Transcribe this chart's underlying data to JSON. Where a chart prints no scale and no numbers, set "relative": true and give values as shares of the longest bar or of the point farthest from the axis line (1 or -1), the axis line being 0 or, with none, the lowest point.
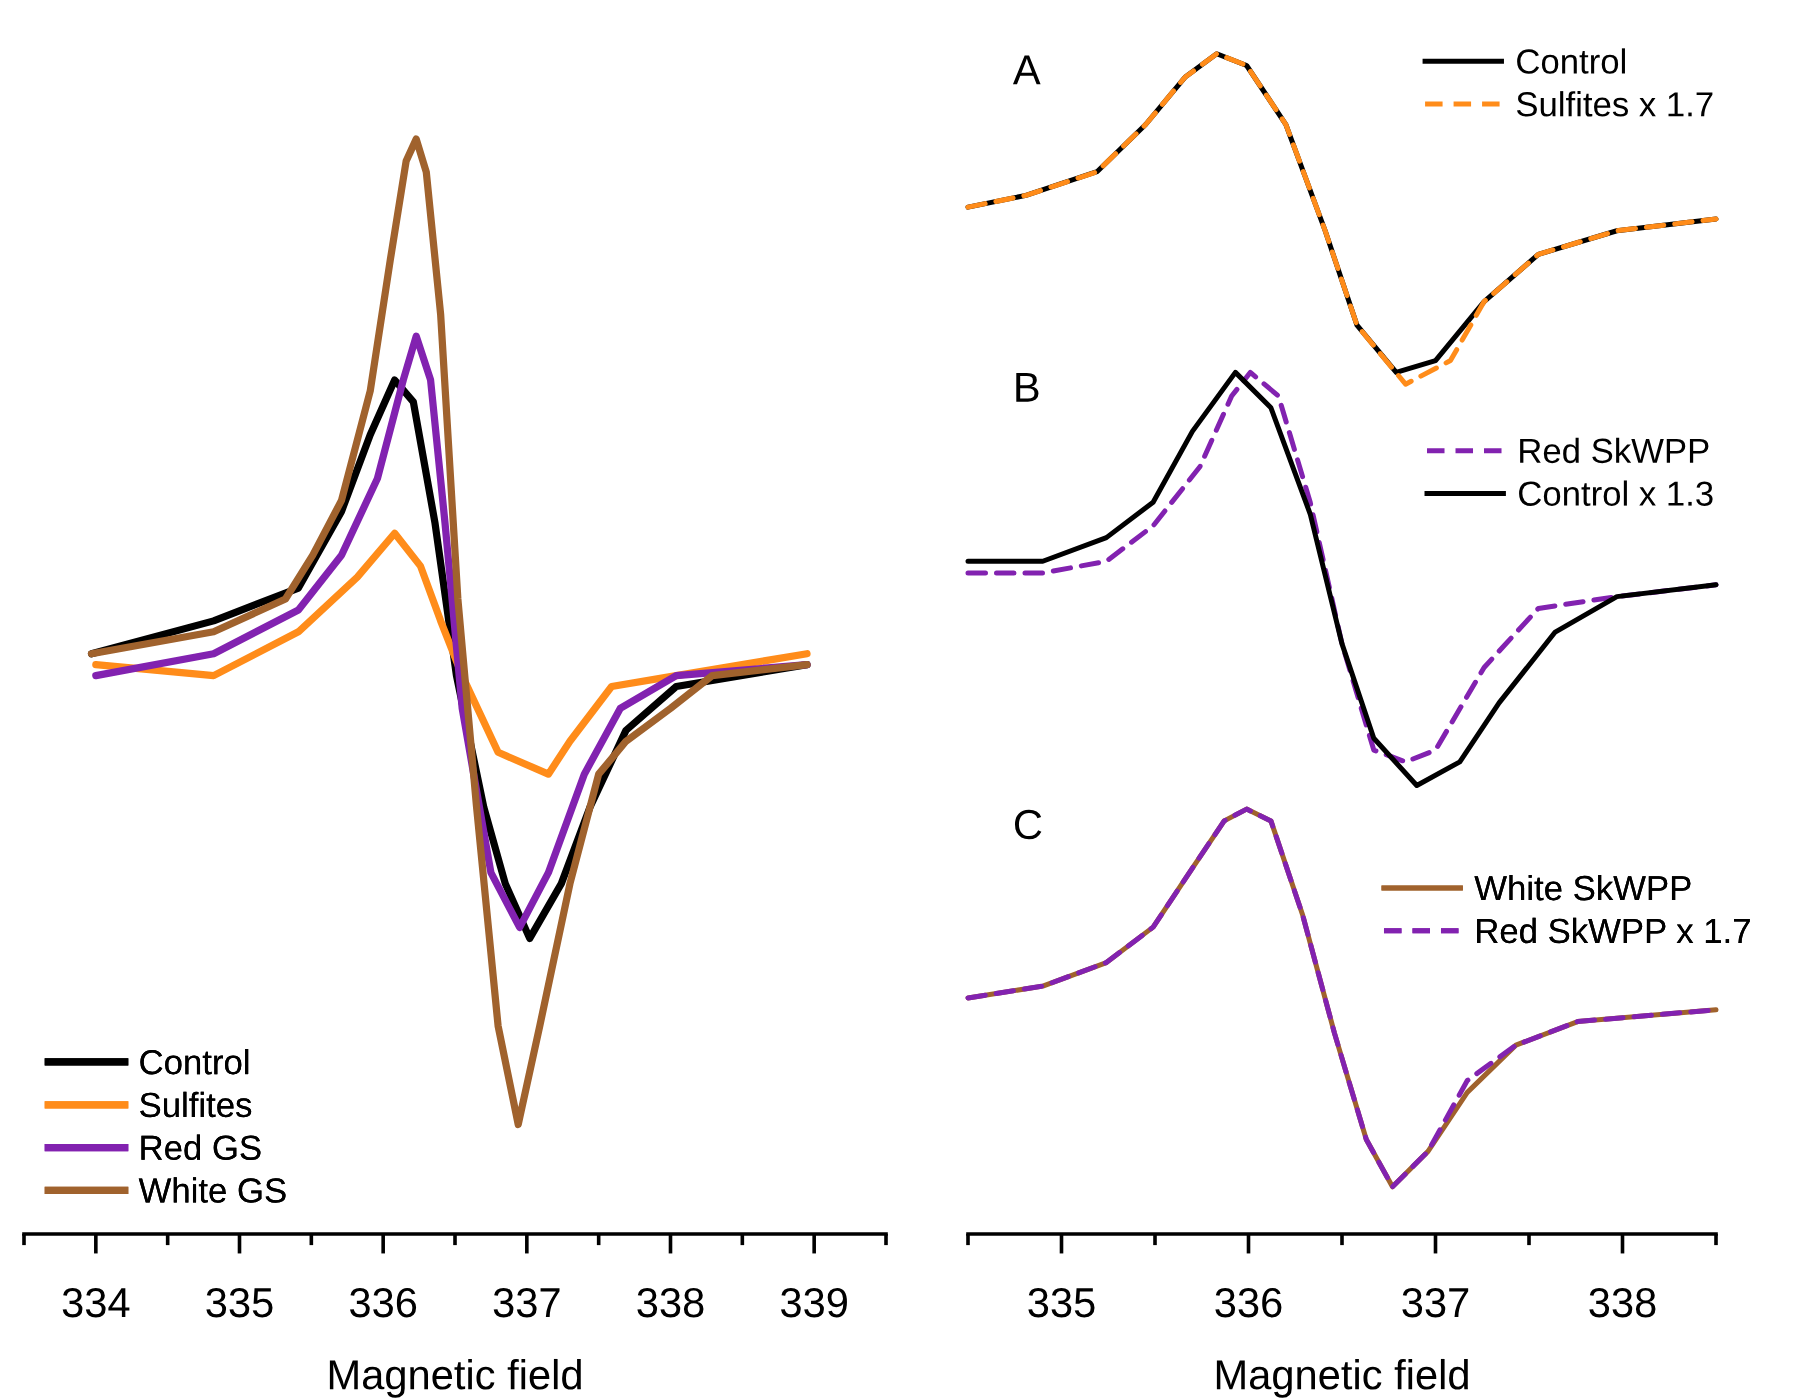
{
  "chart_data": [
    {
      "type": "line",
      "relative": true,
      "xlabel": "Magnetic field",
      "xlim": [
        333.5,
        339.5
      ],
      "xticks": [
        334,
        335,
        336,
        337,
        338,
        339
      ],
      "tick_labels": "x",
      "legend": "bottom left",
      "line_style": "solid",
      "series": [
        {
          "name": "Control",
          "color": "#000000",
          "x": [
            333.97,
            334.82,
            335.41,
            335.71,
            335.91,
            336.08,
            336.21,
            336.36,
            336.51,
            336.7,
            336.85,
            337.02,
            337.24,
            337.44,
            337.69,
            338.04,
            338.95
          ],
          "values": [
            0.53,
            0.56,
            0.59,
            0.66,
            0.73,
            0.78,
            0.76,
            0.65,
            0.51,
            0.39,
            0.32,
            0.27,
            0.32,
            0.39,
            0.46,
            0.5,
            0.52
          ]
        },
        {
          "name": "Sulfites",
          "color": "#ff8c1a",
          "x": [
            334.0,
            334.82,
            335.41,
            335.82,
            336.08,
            336.26,
            336.4,
            336.55,
            336.8,
            337.15,
            337.3,
            337.59,
            338.04,
            338.95
          ],
          "values": [
            0.52,
            0.51,
            0.55,
            0.6,
            0.64,
            0.61,
            0.56,
            0.51,
            0.44,
            0.42,
            0.45,
            0.5,
            0.51,
            0.53
          ]
        },
        {
          "name": "Red GS",
          "color": "#8222b0",
          "x": [
            334.0,
            334.82,
            335.41,
            335.71,
            335.96,
            336.14,
            336.23,
            336.33,
            336.43,
            336.55,
            336.75,
            336.95,
            337.15,
            337.4,
            337.65,
            338.04,
            338.95
          ],
          "values": [
            0.51,
            0.53,
            0.57,
            0.62,
            0.69,
            0.78,
            0.82,
            0.78,
            0.65,
            0.48,
            0.33,
            0.28,
            0.33,
            0.42,
            0.48,
            0.51,
            0.52
          ]
        },
        {
          "name": "White GS",
          "color": "#a0622d",
          "x": [
            333.97,
            334.82,
            335.32,
            335.51,
            335.71,
            335.91,
            336.05,
            336.16,
            336.23,
            336.3,
            336.4,
            336.52,
            336.65,
            336.8,
            336.94,
            337.09,
            337.3,
            337.5,
            337.69,
            338.0,
            338.29,
            338.95
          ],
          "values": [
            0.53,
            0.55,
            0.58,
            0.62,
            0.67,
            0.77,
            0.89,
            0.98,
            1.0,
            0.97,
            0.84,
            0.58,
            0.39,
            0.19,
            0.1,
            0.19,
            0.32,
            0.42,
            0.45,
            0.48,
            0.51,
            0.52
          ]
        }
      ]
    },
    {
      "type": "line",
      "relative": true,
      "xlabel": "Magnetic field",
      "xlim": [
        334.5,
        338.5
      ],
      "xticks": [
        335,
        336,
        337,
        338
      ],
      "tick_labels": "x",
      "legend": "right",
      "annotations": [
        "A",
        "B",
        "C"
      ],
      "series": [
        {
          "name": "Control",
          "color": "#000000",
          "line_style": "solid",
          "x": [
            334.5,
            334.81,
            335.19,
            335.45,
            335.66,
            335.83,
            335.99,
            336.2,
            336.41,
            336.58,
            336.79,
            337.0,
            337.26,
            337.55,
            337.97,
            338.5
          ],
          "values": [
            0.87,
            0.88,
            0.9,
            0.94,
            0.98,
            1.0,
            0.99,
            0.94,
            0.85,
            0.77,
            0.73,
            0.74,
            0.79,
            0.83,
            0.85,
            0.86
          ]
        },
        {
          "name": "Sulfites x 1.7",
          "color": "#ff8c1a",
          "line_style": "dashed",
          "x": [
            334.5,
            334.81,
            335.19,
            335.45,
            335.66,
            335.83,
            335.99,
            336.2,
            336.41,
            336.58,
            336.84,
            337.08,
            337.26,
            337.55,
            337.97,
            338.5
          ],
          "values": [
            0.87,
            0.88,
            0.9,
            0.94,
            0.98,
            1.0,
            0.99,
            0.94,
            0.85,
            0.77,
            0.72,
            0.74,
            0.79,
            0.83,
            0.85,
            0.86
          ]
        },
        {
          "name": "Red SkWPP",
          "color": "#8222b0",
          "line_style": "dashed",
          "x": [
            334.5,
            334.9,
            335.24,
            335.49,
            335.74,
            335.91,
            336.01,
            336.16,
            336.33,
            336.5,
            336.67,
            336.84,
            337.0,
            337.26,
            337.55,
            337.97,
            338.5
          ],
          "values": [
            0.56,
            0.56,
            0.57,
            0.6,
            0.65,
            0.71,
            0.73,
            0.71,
            0.62,
            0.5,
            0.41,
            0.4,
            0.41,
            0.48,
            0.53,
            0.54,
            0.55
          ]
        },
        {
          "name": "Control x 1.3",
          "color": "#000000",
          "line_style": "solid",
          "x": [
            334.5,
            334.9,
            335.24,
            335.49,
            335.7,
            335.93,
            336.12,
            336.33,
            336.5,
            336.67,
            336.9,
            337.13,
            337.34,
            337.64,
            337.97,
            338.5
          ],
          "values": [
            0.57,
            0.57,
            0.59,
            0.62,
            0.68,
            0.73,
            0.7,
            0.61,
            0.5,
            0.42,
            0.38,
            0.4,
            0.45,
            0.51,
            0.54,
            0.55
          ]
        },
        {
          "name": "White SkWPP",
          "color": "#a0622d",
          "line_style": "solid",
          "x": [
            334.5,
            334.9,
            335.24,
            335.49,
            335.7,
            335.87,
            335.99,
            336.12,
            336.29,
            336.46,
            336.63,
            336.77,
            336.96,
            337.17,
            337.43,
            337.76,
            338.5
          ],
          "values": [
            0.2,
            0.21,
            0.23,
            0.26,
            0.31,
            0.35,
            0.36,
            0.35,
            0.27,
            0.17,
            0.08,
            0.04,
            0.07,
            0.12,
            0.16,
            0.18,
            0.19
          ]
        },
        {
          "name": "Red SkWPP x 1.7",
          "color": "#8222b0",
          "line_style": "dashed",
          "x": [
            334.5,
            334.9,
            335.24,
            335.49,
            335.7,
            335.87,
            335.99,
            336.12,
            336.29,
            336.46,
            336.63,
            336.77,
            336.96,
            337.17,
            337.43,
            337.76,
            338.5
          ],
          "values": [
            0.2,
            0.21,
            0.23,
            0.26,
            0.31,
            0.35,
            0.36,
            0.35,
            0.27,
            0.17,
            0.08,
            0.04,
            0.07,
            0.13,
            0.16,
            0.18,
            0.19
          ]
        }
      ]
    }
  ]
}
